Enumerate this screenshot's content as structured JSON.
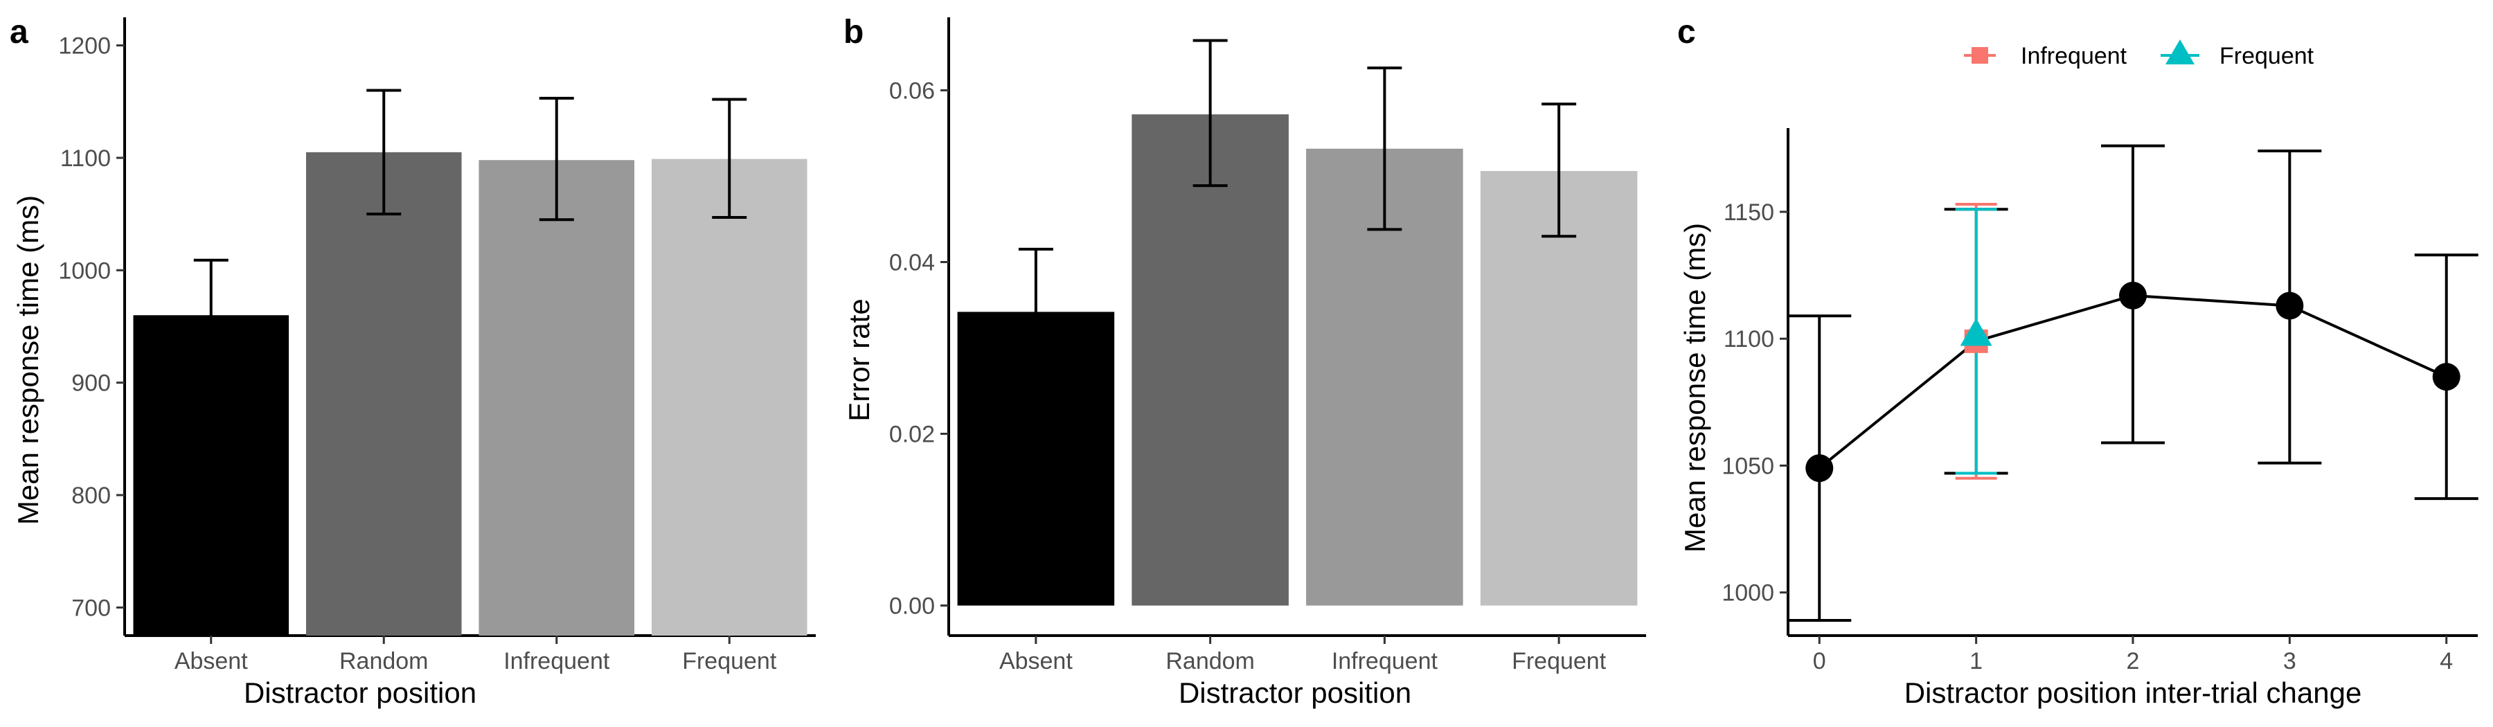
{
  "chart_data": [
    {
      "panel": "a",
      "type": "bar",
      "xlabel": "Distractor position",
      "ylabel": "Mean response time (ms)",
      "categories": [
        "Absent",
        "Random",
        "Infrequent",
        "Frequent"
      ],
      "values": [
        960,
        1105,
        1098,
        1099
      ],
      "error_low": [
        911,
        1050,
        1045,
        1047
      ],
      "error_high": [
        1009,
        1160,
        1153,
        1152
      ],
      "yticks": [
        700,
        800,
        900,
        1000,
        1100,
        1200
      ],
      "ylim": [
        675,
        1225
      ],
      "bar_colors": [
        "#000000",
        "#666666",
        "#999999",
        "#c0c0c0"
      ]
    },
    {
      "panel": "b",
      "type": "bar",
      "xlabel": "Distractor position",
      "ylabel": "Error rate",
      "categories": [
        "Absent",
        "Random",
        "Infrequent",
        "Frequent"
      ],
      "values": [
        0.0342,
        0.0572,
        0.0532,
        0.0506
      ],
      "error_low": [
        0.0268,
        0.0489,
        0.0438,
        0.043
      ],
      "error_high": [
        0.0415,
        0.0658,
        0.0626,
        0.0584
      ],
      "yticks": [
        0.0,
        0.02,
        0.04,
        0.06
      ],
      "ytick_labels": [
        "0.00",
        "0.02",
        "0.04",
        "0.06"
      ],
      "ylim": [
        -0.0035,
        0.0685
      ],
      "bar_colors": [
        "#000000",
        "#666666",
        "#999999",
        "#c0c0c0"
      ]
    },
    {
      "panel": "c",
      "type": "line",
      "xlabel": "Distractor position inter-trial change",
      "ylabel": "Mean response time (ms)",
      "x": [
        0,
        1,
        2,
        3,
        4
      ],
      "xticks": [
        0,
        1,
        2,
        3,
        4
      ],
      "yticks": [
        1000,
        1050,
        1100,
        1150
      ],
      "xlim": [
        -0.2,
        4.2
      ],
      "ylim": [
        983,
        1183
      ],
      "series": [
        {
          "values": [
            1049,
            1099,
            1117,
            1113,
            1085
          ],
          "error_low": [
            989,
            1047,
            1059,
            1051,
            1037
          ],
          "error_high": [
            1109,
            1151,
            1176,
            1174,
            1133
          ],
          "color": "#000000",
          "marker": "circle"
        }
      ],
      "extra_points": [
        {
          "name": "Infrequent",
          "x": 1,
          "y": 1099,
          "error_low": 1045,
          "error_high": 1153,
          "color": "#f8766d",
          "marker": "square"
        },
        {
          "name": "Frequent",
          "x": 1,
          "y": 1101,
          "error_low": 1047,
          "error_high": 1151,
          "color": "#00bfc4",
          "marker": "triangle"
        }
      ],
      "legend": {
        "position": "top",
        "entries": [
          "Infrequent",
          "Frequent"
        ]
      }
    }
  ]
}
